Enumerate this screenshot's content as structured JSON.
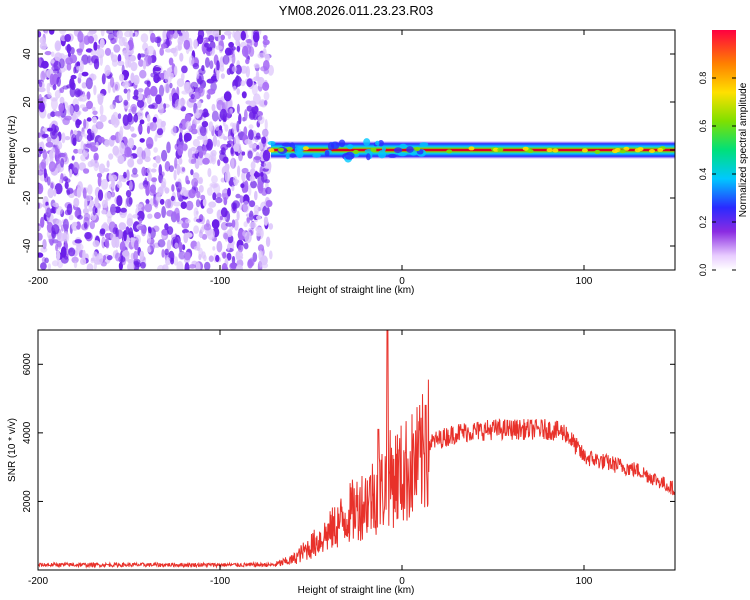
{
  "title": "YM08.2026.011.23.23.R03",
  "colors": {
    "scatter": "#7b2ff0",
    "line": "#e8312a",
    "axis": "#000000"
  },
  "chart_data": [
    {
      "type": "heatmap",
      "xlabel": "Height of straight line (km)",
      "ylabel": "Frequency (Hz)",
      "xlim": [
        -200,
        150
      ],
      "ylim": [
        -50,
        50
      ],
      "xticks": [
        -200,
        -100,
        0,
        100
      ],
      "yticks": [
        -40,
        -20,
        0,
        20,
        40
      ],
      "colorbar": {
        "label": "Normalized spectral amplitude",
        "range": [
          0,
          1
        ],
        "ticks": [
          0.0,
          0.2,
          0.4,
          0.6,
          0.8
        ],
        "tick_labels": [
          "0.0",
          "0.2",
          "0.4",
          "0.6",
          "0.8"
        ]
      },
      "noise_region": {
        "x": [
          -200,
          -72
        ],
        "y": [
          -50,
          50
        ]
      },
      "band": {
        "x": [
          -72,
          150
        ],
        "center_hz": 0
      }
    },
    {
      "type": "line",
      "xlabel": "Height of straight line (km)",
      "ylabel": "SNR (10 * v/v)",
      "xlim": [
        -200,
        150
      ],
      "ylim": [
        0,
        7000
      ],
      "xticks": [
        -200,
        -100,
        0,
        100
      ],
      "yticks": [
        2000,
        4000,
        6000
      ],
      "series": [
        {
          "values_envelope": {
            "x": [
              -200,
              -70,
              -60,
              -50,
              -40,
              -30,
              -20,
              -10,
              -8,
              -5,
              0,
              10,
              15,
              30,
              50,
              80,
              90,
              100,
              130,
              150
            ],
            "y": [
              150,
              150,
              300,
              700,
              1100,
              1600,
              2000,
              2400,
              2600,
              2700,
              2800,
              3200,
              3700,
              4000,
              4100,
              4100,
              4000,
              3300,
              2900,
              2350
            ]
          },
          "spikes": [
            {
              "x": -8,
              "y": 7000
            },
            {
              "x": -13,
              "y": 4100
            },
            {
              "x": 13,
              "y": 4800
            }
          ]
        }
      ]
    }
  ]
}
